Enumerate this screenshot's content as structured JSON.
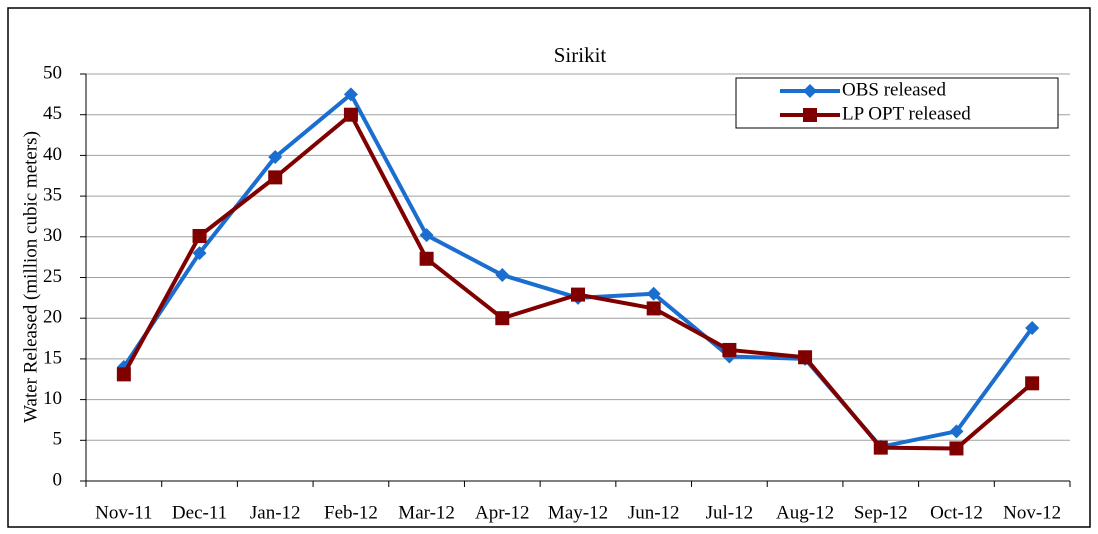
{
  "chart_data": {
    "type": "line",
    "title": "Sirikit",
    "ylabel": "Water Released (million cubic meters)",
    "categories": [
      "Nov-11",
      "Dec-11",
      "Jan-12",
      "Feb-12",
      "Mar-12",
      "Apr-12",
      "May-12",
      "Jun-12",
      "Jul-12",
      "Aug-12",
      "Sep-12",
      "Oct-12",
      "Nov-12"
    ],
    "series": [
      {
        "name": "OBS released",
        "color": "#1a6ed0",
        "marker": "diamond",
        "values": [
          14,
          28,
          39.8,
          47.5,
          30.2,
          25.3,
          22.5,
          23,
          15.3,
          15,
          4.2,
          6.1,
          18.8
        ]
      },
      {
        "name": "LP OPT released",
        "color": "#800000",
        "marker": "square",
        "values": [
          13.1,
          30.1,
          37.3,
          45,
          27.3,
          20,
          22.9,
          21.2,
          16.1,
          15.2,
          4.1,
          4,
          12
        ]
      }
    ],
    "ylim": [
      0,
      50
    ],
    "yticks": [
      0,
      5,
      10,
      15,
      20,
      25,
      30,
      35,
      40,
      45,
      50
    ],
    "grid": true,
    "legend": "upper right"
  }
}
